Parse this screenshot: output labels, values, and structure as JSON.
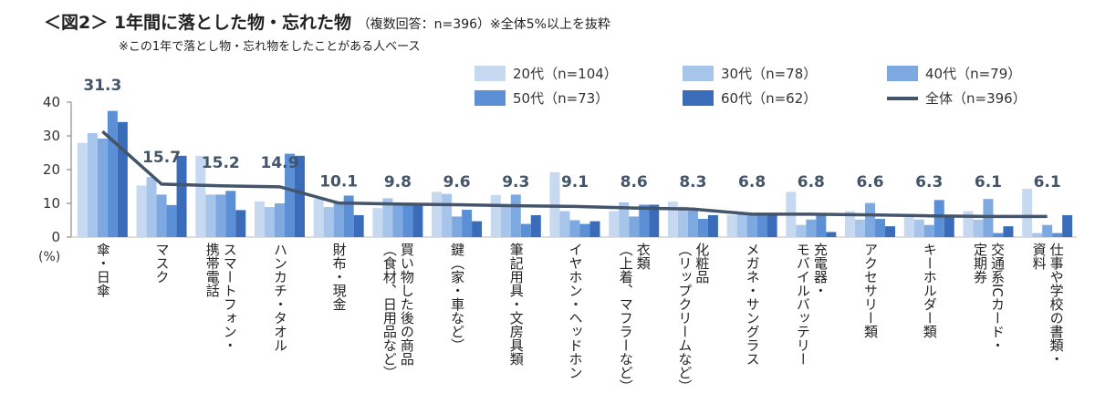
{
  "title": {
    "main": "＜図2＞ 1年間に落とした物・忘れた物",
    "sub": "（複数回答：n=396）※全体5%以上を抜粋",
    "note": "※この1年で落とし物・忘れ物をしたことがある人ベース"
  },
  "chart_data": {
    "type": "bar",
    "ylabel_unit": "(%)",
    "ylim": [
      0,
      40
    ],
    "yticks": [
      0,
      10,
      20,
      30,
      40
    ],
    "grid": false,
    "legend_position": "top-right",
    "categories": [
      [
        "傘・日傘"
      ],
      [
        "マスク"
      ],
      [
        "スマートフォン・",
        "携帯電話"
      ],
      [
        "ハンカチ・タオル"
      ],
      [
        "財布・現金"
      ],
      [
        "買い物した後の商品",
        "（食材、日用品など）"
      ],
      [
        "鍵（家・車など）"
      ],
      [
        "筆記用具・文房具類"
      ],
      [
        "イヤホン・ヘッドホン"
      ],
      [
        "衣類",
        "（上着、マフラーなど）"
      ],
      [
        "化粧品",
        "（リップクリームなど）"
      ],
      [
        "メガネ・サングラス"
      ],
      [
        "充電器・",
        "モバイルバッテリー"
      ],
      [
        "アクセサリー類"
      ],
      [
        "キーホルダー類"
      ],
      [
        "交通系ICカード・",
        "定期券"
      ],
      [
        "仕事や学校の書類・",
        "資料"
      ]
    ],
    "series": [
      {
        "name": "20代（n=104）",
        "color": "#c6d9f1",
        "values": [
          27.9,
          15.3,
          24.1,
          10.6,
          11.3,
          8.6,
          13.4,
          12.5,
          19.2,
          7.7,
          10.5,
          6.5,
          13.4,
          7.7,
          5.9,
          7.7,
          14.3
        ]
      },
      {
        "name": "30代（n=78）",
        "color": "#a7c4ea",
        "values": [
          30.8,
          17.8,
          12.6,
          8.9,
          8.9,
          11.5,
          12.8,
          9.0,
          7.7,
          10.3,
          9.0,
          7.0,
          3.6,
          5.2,
          5.2,
          5.2,
          1.2
        ]
      },
      {
        "name": "40代（n=79）",
        "color": "#7ea9e0",
        "values": [
          29.2,
          12.6,
          12.6,
          10.0,
          10.0,
          10.0,
          6.1,
          12.6,
          5.0,
          6.1,
          8.6,
          7.0,
          5.2,
          10.1,
          3.6,
          11.3,
          3.6
        ]
      },
      {
        "name": "50代（n=73）",
        "color": "#5b8fd6",
        "values": [
          37.4,
          9.5,
          13.7,
          24.7,
          12.3,
          10.0,
          8.1,
          3.9,
          3.9,
          9.6,
          5.4,
          6.8,
          6.5,
          5.4,
          11.0,
          1.2,
          1.2
        ]
      },
      {
        "name": "60代（n=62）",
        "color": "#3a6cb9",
        "values": [
          34.1,
          24.1,
          8.0,
          24.1,
          6.5,
          10.0,
          4.7,
          6.5,
          4.7,
          9.6,
          6.5,
          6.8,
          1.5,
          3.2,
          6.1,
          3.2,
          6.5
        ]
      }
    ],
    "line": {
      "name": "全体（n=396）",
      "color": "#44546a",
      "values": [
        31.3,
        15.7,
        15.2,
        14.9,
        10.1,
        9.8,
        9.6,
        9.3,
        9.1,
        8.6,
        8.3,
        6.8,
        6.8,
        6.6,
        6.3,
        6.1,
        6.1
      ],
      "labels": [
        "31.3",
        "15.7",
        "15.2",
        "14.9",
        "10.1",
        "9.8",
        "9.6",
        "9.3",
        "9.1",
        "8.6",
        "8.3",
        "6.8",
        "6.8",
        "6.6",
        "6.3",
        "6.1",
        "6.1"
      ]
    }
  }
}
